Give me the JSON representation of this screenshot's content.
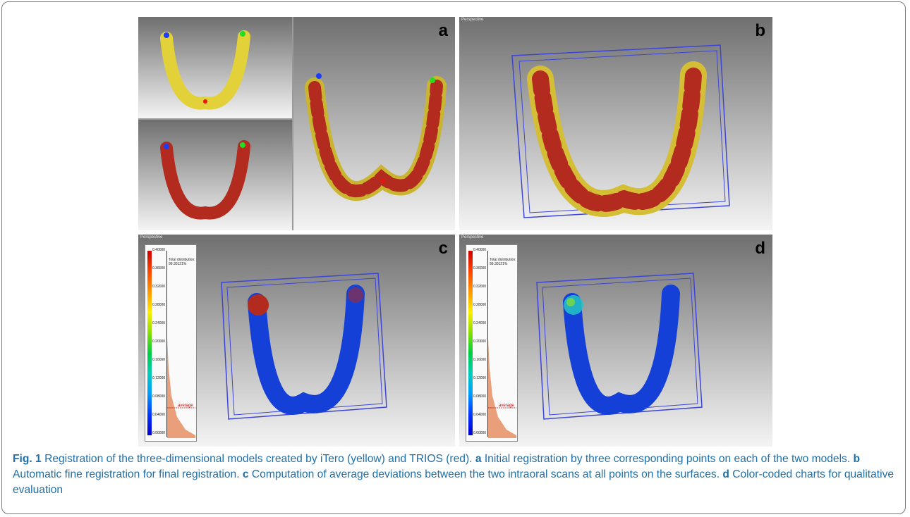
{
  "panels": {
    "a": {
      "label": "a",
      "persp": "Perspective"
    },
    "b": {
      "label": "b",
      "persp": "Perspective"
    },
    "c": {
      "label": "c",
      "persp": "Perspective"
    },
    "d": {
      "label": "d",
      "persp": "Perspective"
    }
  },
  "legend": {
    "ticks": [
      "0.40000",
      "0.36000",
      "0.32000",
      "0.28000",
      "0.24000",
      "0.20000",
      "0.16000",
      "0.12000",
      "0.08000",
      "0.04000",
      "0.00000"
    ],
    "distribution": "Total distribution:",
    "percent": "99.30121%",
    "average": "average"
  },
  "caption": {
    "fig": "Fig. 1",
    "intro": " Registration of the three-dimensional models created by iTero (yellow) and TRIOS (red). ",
    "a": "a",
    "a_text": " Initial registration by three corresponding points on each of the two models. ",
    "b": "b",
    "b_text": " Automatic fine registration for final registration. ",
    "c": "c",
    "c_text": " Computation of average deviations between the two intraoral scans at all points on the surfaces. ",
    "d": "d",
    "d_text": " Color-coded charts for qualitative evaluation"
  },
  "colors": {
    "itero": "#e3d13a",
    "trios": "#b32a1e",
    "deviation": "#1540d8",
    "box": "#3d45d6",
    "caption": "#1f6fa8"
  }
}
